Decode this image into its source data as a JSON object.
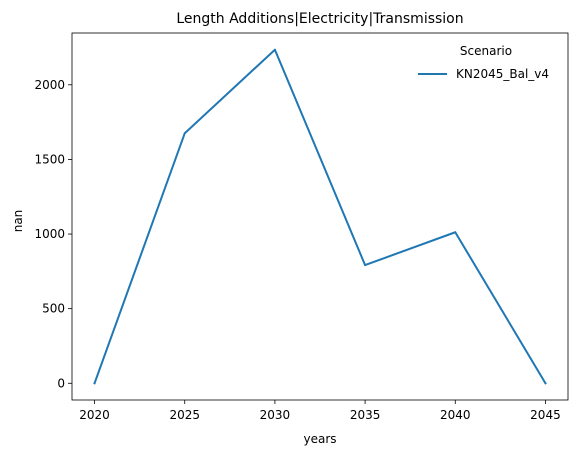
{
  "chart_data": {
    "type": "line",
    "title": "Length Additions|Electricity|Transmission",
    "xlabel": "years",
    "ylabel": "nan",
    "x": [
      2020,
      2025,
      2030,
      2035,
      2040,
      2045
    ],
    "series": [
      {
        "name": "KN2045_Bal_v4",
        "values": [
          0,
          1675,
          2235,
          792,
          1012,
          0
        ],
        "color": "#1f77b4"
      }
    ],
    "xticks": [
      "2020",
      "2025",
      "2030",
      "2035",
      "2040",
      "2045"
    ],
    "yticks": [
      "0",
      "500",
      "1000",
      "1500",
      "2000"
    ],
    "xlim": [
      2018.75,
      2046.25
    ],
    "ylim": [
      -112,
      2347
    ],
    "legend": {
      "title": "Scenario",
      "placement": "top-right"
    },
    "grid": false
  }
}
